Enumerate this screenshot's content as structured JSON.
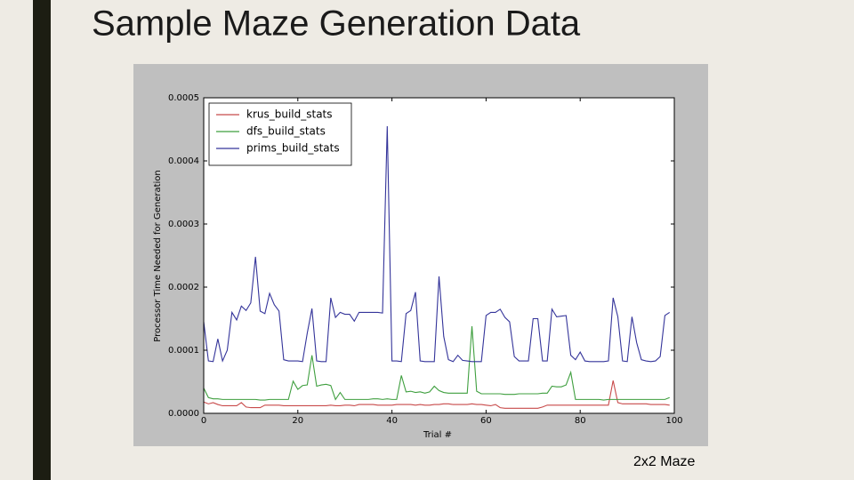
{
  "slide": {
    "title": "Sample Maze Generation Data",
    "caption": "2x2 Maze"
  },
  "chart_data": {
    "type": "line",
    "xlabel": "Trial #",
    "ylabel": "Processor Time Needed for Generation",
    "xlim": [
      0,
      100
    ],
    "xticks": [
      0,
      20,
      40,
      60,
      80,
      100
    ],
    "ylim": [
      0,
      0.0005
    ],
    "yticks": [
      {
        "value": 0,
        "label": "0.0000"
      },
      {
        "value": 0.0001,
        "label": "0.0001"
      },
      {
        "value": 0.0002,
        "label": "0.0002"
      },
      {
        "value": 0.0003,
        "label": "0.0003"
      },
      {
        "value": 0.0004,
        "label": "0.0004"
      },
      {
        "value": 0.0005,
        "label": "0.0005"
      }
    ],
    "grid": false,
    "legend": "upper left",
    "x": [
      0,
      1,
      2,
      3,
      4,
      5,
      6,
      7,
      8,
      9,
      10,
      11,
      12,
      13,
      14,
      15,
      16,
      17,
      18,
      19,
      20,
      21,
      22,
      23,
      24,
      25,
      26,
      27,
      28,
      29,
      30,
      31,
      32,
      33,
      34,
      35,
      36,
      37,
      38,
      39,
      40,
      41,
      42,
      43,
      44,
      45,
      46,
      47,
      48,
      49,
      50,
      51,
      52,
      53,
      54,
      55,
      56,
      57,
      58,
      59,
      60,
      61,
      62,
      63,
      64,
      65,
      66,
      67,
      68,
      69,
      70,
      71,
      72,
      73,
      74,
      75,
      76,
      77,
      78,
      79,
      80,
      81,
      82,
      83,
      84,
      85,
      86,
      87,
      88,
      89,
      90,
      91,
      92,
      93,
      94,
      95,
      96,
      97,
      98,
      99
    ],
    "series": [
      {
        "name": "krus_build_stats",
        "color": "#c84a4a",
        "values": [
          1.8e-05,
          1.5e-05,
          1.7e-05,
          1.4e-05,
          1.2e-05,
          1.2e-05,
          1.2e-05,
          1.2e-05,
          1.7e-05,
          1e-05,
          9e-06,
          9e-06,
          9e-06,
          1.3e-05,
          1.3e-05,
          1.3e-05,
          1.3e-05,
          1.2e-05,
          1.2e-05,
          1.2e-05,
          1.2e-05,
          1.2e-05,
          1.2e-05,
          1.2e-05,
          1.2e-05,
          1.2e-05,
          1.2e-05,
          1.3e-05,
          1.2e-05,
          1.2e-05,
          1.3e-05,
          1.3e-05,
          1.2e-05,
          1.4e-05,
          1.4e-05,
          1.4e-05,
          1.4e-05,
          1.3e-05,
          1.3e-05,
          1.3e-05,
          1.3e-05,
          1.4e-05,
          1.4e-05,
          1.4e-05,
          1.4e-05,
          1.3e-05,
          1.4e-05,
          1.3e-05,
          1.3e-05,
          1.4e-05,
          1.4e-05,
          1.5e-05,
          1.5e-05,
          1.4e-05,
          1.4e-05,
          1.4e-05,
          1.4e-05,
          1.5e-05,
          1.4e-05,
          1.4e-05,
          1.3e-05,
          1.2e-05,
          1.4e-05,
          9e-06,
          8e-06,
          8e-06,
          8e-06,
          8e-06,
          8e-06,
          8e-06,
          8e-06,
          8e-06,
          1e-05,
          1.3e-05,
          1.3e-05,
          1.3e-05,
          1.3e-05,
          1.3e-05,
          1.3e-05,
          1.3e-05,
          1.3e-05,
          1.3e-05,
          1.3e-05,
          1.3e-05,
          1.3e-05,
          1.3e-05,
          1.3e-05,
          5.2e-05,
          1.7e-05,
          1.5e-05,
          1.5e-05,
          1.5e-05,
          1.5e-05,
          1.5e-05,
          1.5e-05,
          1.4e-05,
          1.4e-05,
          1.4e-05,
          1.4e-05,
          1.3e-05
        ]
      },
      {
        "name": "dfs_build_stats",
        "color": "#3f9f3f",
        "values": [
          4e-05,
          2.5e-05,
          2.3e-05,
          2.3e-05,
          2.2e-05,
          2.2e-05,
          2.2e-05,
          2.2e-05,
          2.2e-05,
          2.2e-05,
          2.2e-05,
          2.2e-05,
          2.1e-05,
          2.1e-05,
          2.2e-05,
          2.2e-05,
          2.2e-05,
          2.2e-05,
          2.2e-05,
          5.1e-05,
          3.8e-05,
          4.4e-05,
          4.5e-05,
          9.2e-05,
          4.3e-05,
          4.5e-05,
          4.6e-05,
          4.4e-05,
          2.2e-05,
          3.3e-05,
          2.2e-05,
          2.2e-05,
          2.2e-05,
          2.2e-05,
          2.2e-05,
          2.2e-05,
          2.3e-05,
          2.3e-05,
          2.2e-05,
          2.3e-05,
          2.2e-05,
          2.2e-05,
          6e-05,
          3.4e-05,
          3.5e-05,
          3.3e-05,
          3.4e-05,
          3.2e-05,
          3.4e-05,
          4.3e-05,
          3.6e-05,
          3.3e-05,
          3.2e-05,
          3.2e-05,
          3.2e-05,
          3.2e-05,
          3.2e-05,
          0.000138,
          3.5e-05,
          3.1e-05,
          3.1e-05,
          3.1e-05,
          3.1e-05,
          3.1e-05,
          3e-05,
          3e-05,
          3e-05,
          3.1e-05,
          3.1e-05,
          3.1e-05,
          3.1e-05,
          3.1e-05,
          3.2e-05,
          3.2e-05,
          4.3e-05,
          4.2e-05,
          4.2e-05,
          4.5e-05,
          6.5e-05,
          2.2e-05,
          2.2e-05,
          2.2e-05,
          2.2e-05,
          2.2e-05,
          2.2e-05,
          2.1e-05,
          2.2e-05,
          2.2e-05,
          2.2e-05,
          2.2e-05,
          2.2e-05,
          2.2e-05,
          2.2e-05,
          2.2e-05,
          2.2e-05,
          2.2e-05,
          2.2e-05,
          2.2e-05,
          2.2e-05,
          2.5e-05
        ]
      },
      {
        "name": "prims_build_stats",
        "color": "#34349a",
        "values": [
          0.000145,
          8.3e-05,
          8.2e-05,
          0.000118,
          8.3e-05,
          0.0001,
          0.00016,
          0.000148,
          0.00017,
          0.000163,
          0.000175,
          0.000248,
          0.000162,
          0.000158,
          0.00019,
          0.000172,
          0.000162,
          8.5e-05,
          8.3e-05,
          8.3e-05,
          8.3e-05,
          8.2e-05,
          0.000127,
          0.000166,
          8.3e-05,
          8.2e-05,
          8.2e-05,
          0.000183,
          0.000152,
          0.00016,
          0.000157,
          0.000157,
          0.000146,
          0.00016,
          0.00016,
          0.00016,
          0.00016,
          0.00016,
          0.000159,
          0.000455,
          8.3e-05,
          8.3e-05,
          8.2e-05,
          0.000158,
          0.000163,
          0.000192,
          8.3e-05,
          8.2e-05,
          8.2e-05,
          8.2e-05,
          0.000217,
          0.000122,
          8.5e-05,
          8.2e-05,
          9.2e-05,
          8.4e-05,
          8.3e-05,
          8.2e-05,
          8.2e-05,
          8.2e-05,
          0.000155,
          0.00016,
          0.00016,
          0.000165,
          0.000152,
          0.000145,
          9e-05,
          8.3e-05,
          8.3e-05,
          8.3e-05,
          0.00015,
          0.00015,
          8.3e-05,
          8.3e-05,
          0.000165,
          0.000153,
          0.000154,
          0.000155,
          9.2e-05,
          8.5e-05,
          9.7e-05,
          8.3e-05,
          8.2e-05,
          8.2e-05,
          8.2e-05,
          8.2e-05,
          8.3e-05,
          0.000183,
          0.000153,
          8.3e-05,
          8.2e-05,
          0.000153,
          0.000112,
          8.5e-05,
          8.3e-05,
          8.2e-05,
          8.3e-05,
          9e-05,
          0.000155,
          0.00016
        ]
      }
    ]
  }
}
